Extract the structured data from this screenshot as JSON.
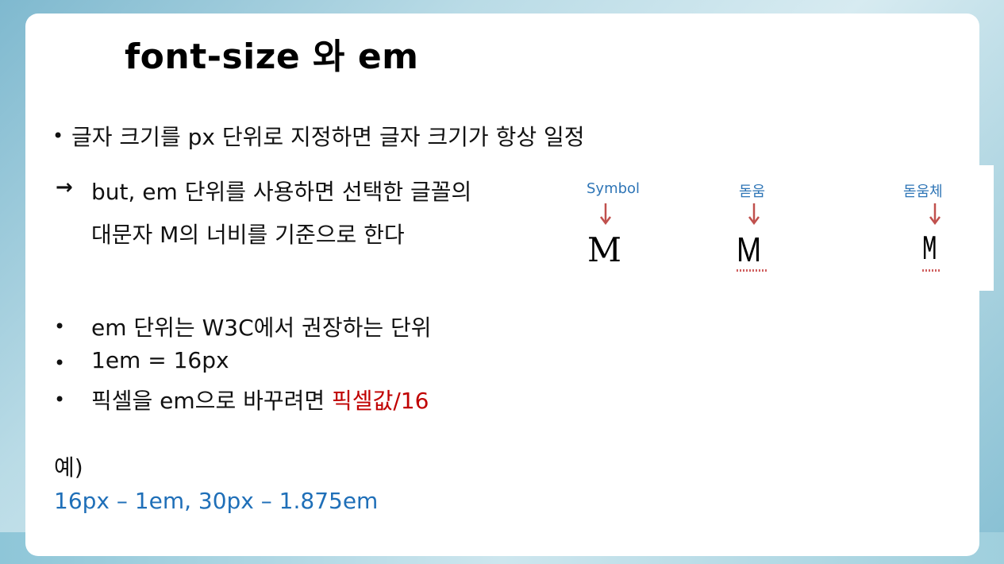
{
  "slide": {
    "title": "font-size 와 em",
    "line1": {
      "bullet": "•",
      "text": "글자 크기를 px 단위로 지정하면 글자 크기가 항상 일정"
    },
    "line2": {
      "arrow": "→",
      "text_a": "but, em 단위를 사용하면 선택한 글꼴의",
      "text_b": "대문자 M의 너비를 기준으로 한다"
    },
    "bullets": [
      {
        "bullet": "•",
        "text": "em 단위는 W3C에서 권장하는 단위"
      },
      {
        "bullet": "•",
        "text": "1em = 16px"
      },
      {
        "bullet": "•",
        "text": "픽셀을 em으로 바꾸려면 ",
        "highlight": "픽셀값/16"
      }
    ],
    "example": {
      "label": "예)",
      "value": "16px – 1em, 30px – 1.875em"
    }
  },
  "figure": {
    "fonts": [
      {
        "label": "Symbol",
        "glyph": "M"
      },
      {
        "label": "돋움",
        "glyph": "M"
      },
      {
        "label": "돋움체",
        "glyph": "M"
      }
    ],
    "arrow_color": "#c0504d",
    "label_color": "#2e75b6"
  },
  "colors": {
    "highlight_red": "#c00000",
    "example_blue": "#1f6fb8"
  }
}
